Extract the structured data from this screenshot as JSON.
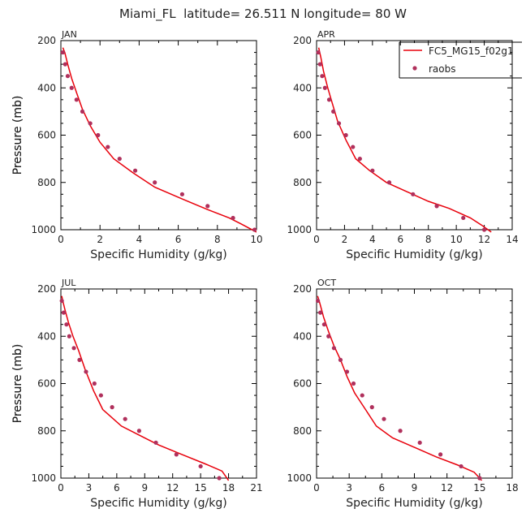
{
  "title": "Miami_FL  latitude= 26.511 N longitude= 80 W",
  "colors": {
    "model": "#e8000b",
    "obs": "#b0305c",
    "axis": "#000000"
  },
  "legend": {
    "model_label": "FC5_MG15_f02g1",
    "obs_label": "raobs"
  },
  "chart_data": [
    {
      "type": "line",
      "panel": "JAN",
      "xlabel": "Specific Humidity (g/kg)",
      "ylabel": "Pressure (mb)",
      "xlim": [
        0,
        10
      ],
      "ylim": [
        1000,
        200
      ],
      "xticks": [
        0,
        2,
        4,
        6,
        8,
        10
      ],
      "yticks": [
        200,
        400,
        600,
        800,
        1000
      ],
      "series": [
        {
          "name": "FC5_MG15_f02g1",
          "x": [
            10.0,
            9.2,
            8.6,
            7.5,
            6.2,
            4.8,
            3.7,
            2.7,
            2.0,
            1.5,
            1.1,
            0.8,
            0.55,
            0.35,
            0.2,
            0.1
          ],
          "y": [
            1010,
            975,
            950,
            915,
            870,
            820,
            760,
            700,
            630,
            560,
            490,
            420,
            360,
            300,
            250,
            230
          ]
        },
        {
          "name": "raobs",
          "x": [
            9.9,
            8.8,
            7.5,
            6.2,
            4.8,
            3.8,
            3.0,
            2.4,
            1.9,
            1.5,
            1.1,
            0.8,
            0.55,
            0.35,
            0.22,
            0.1
          ],
          "y": [
            1000,
            950,
            900,
            850,
            800,
            750,
            700,
            650,
            600,
            550,
            500,
            450,
            400,
            350,
            300,
            250
          ]
        }
      ]
    },
    {
      "type": "line",
      "panel": "APR",
      "xlabel": "Specific Humidity (g/kg)",
      "ylabel": "Pressure (mb)",
      "xlim": [
        0,
        14
      ],
      "ylim": [
        1000,
        200
      ],
      "xticks": [
        0,
        2,
        4,
        6,
        8,
        10,
        12,
        14
      ],
      "yticks": [
        200,
        400,
        600,
        800,
        1000
      ],
      "series": [
        {
          "name": "FC5_MG15_f02g1",
          "x": [
            12.5,
            11.8,
            11.0,
            9.5,
            8.0,
            6.5,
            5.0,
            3.8,
            2.8,
            2.1,
            1.5,
            1.1,
            0.8,
            0.5,
            0.3,
            0.15
          ],
          "y": [
            1010,
            980,
            950,
            910,
            880,
            840,
            800,
            750,
            700,
            620,
            540,
            460,
            400,
            330,
            270,
            230
          ]
        },
        {
          "name": "raobs",
          "x": [
            12.0,
            10.5,
            8.6,
            6.9,
            5.2,
            4.0,
            3.1,
            2.6,
            2.1,
            1.6,
            1.2,
            0.9,
            0.6,
            0.4,
            0.25,
            0.12
          ],
          "y": [
            1000,
            950,
            900,
            850,
            800,
            750,
            700,
            650,
            600,
            550,
            500,
            450,
            400,
            350,
            300,
            250
          ]
        }
      ]
    },
    {
      "type": "line",
      "panel": "JUL",
      "xlabel": "Specific Humidity (g/kg)",
      "ylabel": "Pressure (mb)",
      "xlim": [
        0,
        21
      ],
      "ylim": [
        1000,
        200
      ],
      "xticks": [
        0,
        3,
        6,
        9,
        12,
        15,
        18,
        21
      ],
      "yticks": [
        200,
        400,
        600,
        800,
        1000
      ],
      "series": [
        {
          "name": "FC5_MG15_f02g1",
          "x": [
            18.0,
            17.3,
            15.5,
            13.0,
            10.5,
            8.5,
            6.5,
            4.5,
            3.5,
            2.6,
            1.9,
            1.3,
            0.8,
            0.45,
            0.2,
            0.1
          ],
          "y": [
            1010,
            970,
            940,
            900,
            860,
            820,
            780,
            710,
            630,
            540,
            460,
            400,
            340,
            290,
            250,
            230
          ]
        },
        {
          "name": "raobs",
          "x": [
            17.0,
            15.0,
            12.4,
            10.2,
            8.4,
            6.9,
            5.5,
            4.3,
            3.6,
            2.7,
            2.0,
            1.4,
            0.9,
            0.6,
            0.3,
            0.1
          ],
          "y": [
            1000,
            950,
            900,
            850,
            800,
            750,
            700,
            650,
            600,
            550,
            500,
            450,
            400,
            350,
            300,
            250
          ]
        }
      ]
    },
    {
      "type": "line",
      "panel": "OCT",
      "xlabel": "Specific Humidity (g/kg)",
      "ylabel": "Pressure (mb)",
      "xlim": [
        0,
        18
      ],
      "ylim": [
        1000,
        200
      ],
      "xticks": [
        0,
        3,
        6,
        9,
        12,
        15,
        18
      ],
      "yticks": [
        200,
        400,
        600,
        800,
        1000
      ],
      "series": [
        {
          "name": "FC5_MG15_f02g1",
          "x": [
            15.2,
            14.5,
            13.0,
            11.0,
            9.0,
            7.0,
            5.5,
            4.5,
            3.5,
            2.8,
            2.2,
            1.6,
            1.1,
            0.65,
            0.3,
            0.1
          ],
          "y": [
            1010,
            975,
            945,
            910,
            870,
            830,
            780,
            710,
            640,
            570,
            500,
            440,
            380,
            320,
            260,
            230
          ]
        },
        {
          "name": "raobs",
          "x": [
            15.0,
            13.3,
            11.4,
            9.5,
            7.7,
            6.2,
            5.1,
            4.2,
            3.4,
            2.8,
            2.2,
            1.6,
            1.1,
            0.7,
            0.35,
            0.12
          ],
          "y": [
            1000,
            950,
            900,
            850,
            800,
            750,
            700,
            650,
            600,
            550,
            500,
            450,
            400,
            350,
            300,
            250
          ]
        }
      ]
    }
  ]
}
